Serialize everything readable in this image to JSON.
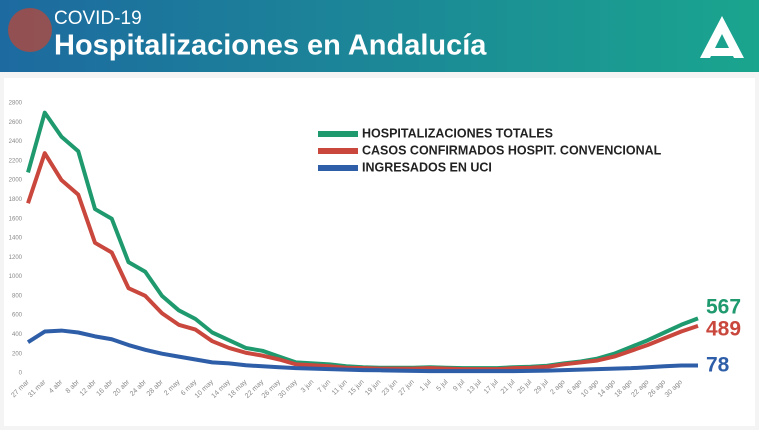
{
  "chart_data": {
    "type": "line",
    "supertitle": "COVID-19",
    "title": "Hospitalizaciones en Andalucía",
    "categories": [
      "27 mar",
      "31 mar",
      "4 abr",
      "8 abr",
      "12 abr",
      "16 abr",
      "20 abr",
      "24 abr",
      "28 abr",
      "2 may",
      "6 may",
      "10 may",
      "14 may",
      "18 may",
      "22 may",
      "26 may",
      "30 may",
      "3 jun",
      "7 jun",
      "11 jun",
      "15 jun",
      "19 jun",
      "23 jun",
      "27 jun",
      "1 jul",
      "5 jul",
      "9 jul",
      "13 jul",
      "17 jul",
      "21 jul",
      "25 jul",
      "29 jul",
      "2 ago",
      "6 ago",
      "10 ago",
      "14 ago",
      "18 ago",
      "22 ago",
      "26 ago",
      "30 ago",
      null
    ],
    "series": [
      {
        "name": "HOSPITALIZACIONES TOTALES",
        "color": "#1f9a6f",
        "values": [
          2080,
          2700,
          2450,
          2300,
          1700,
          1600,
          1150,
          1050,
          800,
          650,
          560,
          420,
          340,
          260,
          230,
          170,
          110,
          100,
          90,
          70,
          60,
          55,
          55,
          55,
          60,
          55,
          50,
          50,
          50,
          60,
          65,
          75,
          100,
          120,
          150,
          200,
          270,
          340,
          420,
          500,
          567
        ]
      },
      {
        "name": "CASOS CONFIRMADOS HOSPIT. CONVENCIONAL",
        "color": "#c9473c",
        "values": [
          1760,
          2280,
          2000,
          1850,
          1350,
          1250,
          880,
          800,
          620,
          500,
          450,
          330,
          260,
          210,
          180,
          140,
          90,
          80,
          70,
          55,
          50,
          45,
          45,
          45,
          50,
          45,
          40,
          40,
          40,
          50,
          55,
          65,
          90,
          110,
          130,
          170,
          230,
          290,
          360,
          430,
          489
        ]
      },
      {
        "name": "INGRESADOS EN UCI",
        "color": "#2f5ea8",
        "values": [
          320,
          430,
          440,
          420,
          380,
          350,
          290,
          240,
          200,
          170,
          140,
          110,
          100,
          80,
          70,
          60,
          50,
          45,
          40,
          35,
          30,
          28,
          25,
          22,
          20,
          20,
          20,
          20,
          20,
          20,
          22,
          25,
          30,
          35,
          40,
          45,
          50,
          60,
          70,
          78,
          78
        ]
      }
    ],
    "ylim": [
      0,
      2800
    ],
    "yticks": [
      0,
      200,
      400,
      600,
      800,
      1000,
      1200,
      1400,
      1600,
      1800,
      2000,
      2200,
      2400,
      2600,
      2800
    ],
    "grid": false
  }
}
